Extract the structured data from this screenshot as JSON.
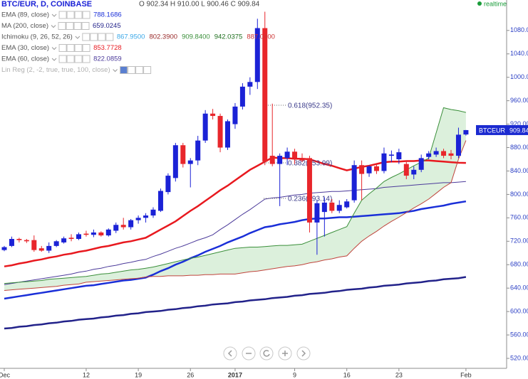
{
  "header": {
    "symbol": "BTC/EUR, D, COINBASE",
    "ohlc": "O 902.34  H 910.00  L 900.46  C 909.84",
    "realtime": "realtime",
    "indicators": [
      {
        "name": "EMA (89, close)",
        "name_color": "#555555",
        "values": [
          {
            "text": "788.1686",
            "color": "#1a2fd8"
          }
        ]
      },
      {
        "name": "MA (200, close)",
        "name_color": "#555555",
        "values": [
          {
            "text": "659.0245",
            "color": "#22228a"
          }
        ]
      },
      {
        "name": "Ichimoku (9, 26, 52, 26)",
        "name_color": "#555555",
        "values": [
          {
            "text": "867.9500",
            "color": "#3aa8e8"
          },
          {
            "text": "802.3900",
            "color": "#9a2c2c"
          },
          {
            "text": "909.8400",
            "color": "#3a8f3a"
          },
          {
            "text": "942.0375",
            "color": "#1d6e1d"
          },
          {
            "text": "887.0400",
            "color": "#cc3333"
          }
        ]
      },
      {
        "name": "EMA (30, close)",
        "name_color": "#555555",
        "values": [
          {
            "text": "853.7728",
            "color": "#e8191f"
          }
        ]
      },
      {
        "name": "EMA (60, close)",
        "name_color": "#555555",
        "values": [
          {
            "text": "822.0859",
            "color": "#4b3a9a"
          }
        ]
      },
      {
        "name": "Lin Reg (2, -2, true, true, 100, close)",
        "name_color": "#b0b0b0",
        "values": []
      }
    ]
  },
  "chart_data": {
    "type": "candlestick",
    "categories": [
      "Dec",
      null,
      null,
      null,
      null,
      null,
      null,
      null,
      null,
      null,
      null,
      "12",
      null,
      null,
      null,
      null,
      null,
      null,
      "19",
      null,
      null,
      null,
      null,
      null,
      null,
      "26",
      null,
      null,
      null,
      null,
      null,
      "2017",
      null,
      null,
      null,
      null,
      null,
      null,
      null,
      "9",
      null,
      null,
      null,
      null,
      null,
      null,
      "16",
      null,
      null,
      null,
      null,
      null,
      null,
      "23",
      null,
      null,
      null,
      null,
      null,
      null,
      null,
      null,
      "Feb"
    ],
    "open": [
      705,
      712,
      724,
      722,
      722,
      708,
      704,
      712,
      718,
      726,
      724,
      733,
      731,
      735,
      730,
      738,
      748,
      744,
      756,
      760,
      764,
      772,
      804,
      828,
      884,
      852,
      858,
      892,
      938,
      934,
      880,
      920,
      950,
      984,
      992,
      1084,
      866,
      852,
      862,
      873,
      862,
      862,
      752,
      770,
      786,
      772,
      778,
      790,
      850,
      836,
      848,
      840,
      866,
      860,
      852,
      834,
      842,
      864,
      868,
      874,
      870,
      866,
      902.34
    ],
    "high": [
      712,
      728,
      726,
      724,
      730,
      712,
      718,
      722,
      728,
      732,
      735,
      738,
      740,
      737,
      742,
      752,
      760,
      758,
      764,
      768,
      778,
      810,
      836,
      888,
      888,
      862,
      900,
      944,
      946,
      938,
      928,
      956,
      990,
      1000,
      1100,
      1112,
      955,
      870,
      880,
      878,
      870,
      866,
      790,
      795,
      792,
      790,
      792,
      858,
      858,
      850,
      852,
      880,
      875,
      878,
      858,
      848,
      868,
      874,
      880,
      878,
      876,
      914,
      910
    ],
    "low": [
      703,
      710,
      718,
      717,
      702,
      702,
      700,
      710,
      716,
      720,
      722,
      728,
      727,
      728,
      728,
      734,
      740,
      740,
      750,
      752,
      760,
      770,
      800,
      822,
      846,
      812,
      850,
      888,
      928,
      872,
      876,
      912,
      945,
      970,
      980,
      850,
      848,
      780,
      850,
      852,
      855,
      735,
      697,
      728,
      768,
      768,
      776,
      786,
      790,
      830,
      835,
      836,
      855,
      852,
      826,
      826,
      838,
      860,
      864,
      862,
      860,
      862,
      900.46
    ],
    "close": [
      710,
      724,
      722,
      720,
      705,
      704,
      712,
      720,
      725,
      724,
      732,
      731,
      735,
      730,
      740,
      748,
      744,
      756,
      760,
      764,
      774,
      806,
      832,
      884,
      852,
      858,
      892,
      938,
      934,
      880,
      925,
      950,
      984,
      992,
      1084,
      856,
      852,
      866,
      873,
      862,
      858,
      752,
      785,
      786,
      772,
      782,
      788,
      850,
      835,
      848,
      840,
      870,
      868,
      872,
      832,
      842,
      862,
      870,
      874,
      866,
      866,
      902,
      909.84
    ],
    "up_color": "#1b22d6",
    "down_color": "#e8262b",
    "series": [
      {
        "name": "EMA (89, close)",
        "color": "#1a2fd8",
        "width": 2.5,
        "values": [
          622,
          624,
          626,
          628,
          630,
          632,
          634,
          636,
          638,
          640,
          642,
          644,
          645,
          647,
          649,
          651,
          653,
          654,
          656,
          658,
          663,
          669,
          674,
          680,
          685,
          691,
          696,
          702,
          707,
          712,
          718,
          723,
          728,
          734,
          739,
          744,
          746,
          749,
          751,
          753,
          756,
          758,
          759,
          759,
          760,
          761,
          761,
          762,
          763,
          764,
          765,
          766,
          767,
          768,
          770,
          772,
          775,
          777,
          779,
          781,
          784,
          786,
          788.17
        ]
      },
      {
        "name": "MA (200, close)",
        "color": "#22228a",
        "width": 2.5,
        "values": [
          571,
          572,
          574,
          575,
          577,
          578,
          580,
          581,
          583,
          584,
          586,
          587,
          588,
          590,
          591,
          593,
          594,
          596,
          597,
          599,
          600,
          601,
          603,
          604,
          606,
          607,
          609,
          610,
          612,
          613,
          614,
          616,
          617,
          619,
          620,
          621,
          623,
          624,
          625,
          627,
          628,
          630,
          631,
          632,
          634,
          635,
          637,
          638,
          639,
          641,
          642,
          644,
          645,
          646,
          648,
          649,
          650,
          652,
          653,
          655,
          656,
          657,
          659
        ]
      },
      {
        "name": "EMA (30, close)",
        "color": "#e8191f",
        "width": 2.5,
        "values": [
          677,
          679,
          682,
          684,
          687,
          689,
          692,
          694,
          697,
          699,
          702,
          704,
          707,
          710,
          712,
          715,
          718,
          720,
          723,
          726,
          733,
          740,
          747,
          754,
          763,
          772,
          780,
          789,
          798,
          807,
          815,
          824,
          833,
          842,
          849,
          856,
          863,
          862,
          862,
          861,
          861,
          860,
          856,
          852,
          849,
          845,
          841,
          844,
          847,
          849,
          852,
          855,
          856,
          856,
          857,
          857,
          858,
          858,
          857,
          856,
          855,
          854,
          853.77
        ]
      },
      {
        "name": "EMA (60, close)",
        "color": "#4b3a9a",
        "width": 1,
        "values": [
          646,
          648,
          650,
          652,
          654,
          656,
          658,
          660,
          662,
          664,
          667,
          669,
          672,
          674,
          677,
          679,
          682,
          684,
          687,
          689,
          694,
          698,
          703,
          708,
          712,
          717,
          722,
          726,
          731,
          740,
          748,
          757,
          766,
          774,
          783,
          792,
          794,
          795,
          797,
          799,
          800,
          802,
          803,
          804,
          805,
          805,
          806,
          807,
          808,
          809,
          810,
          812,
          813,
          814,
          815,
          816,
          817,
          818,
          819,
          820,
          820,
          821,
          822.09
        ]
      },
      {
        "name": "Ichimoku span A",
        "color": "#3a8f3a",
        "width": 1,
        "values": [
          648,
          649,
          650,
          651,
          652,
          653,
          655,
          656,
          657,
          658,
          659,
          660,
          662,
          664,
          665,
          667,
          669,
          671,
          672,
          674,
          676,
          679,
          682,
          685,
          688,
          691,
          693,
          696,
          699,
          702,
          705,
          708,
          709,
          710,
          710,
          711,
          712,
          713,
          713,
          714,
          715,
          720,
          725,
          730,
          735,
          740,
          745,
          768,
          790,
          801,
          811,
          822,
          829,
          835,
          842,
          849,
          855,
          862,
          905,
          948,
          945,
          943,
          940
        ]
      },
      {
        "name": "Ichimoku span B",
        "color": "#c0443c",
        "width": 1,
        "values": [
          636,
          637,
          638,
          639,
          640,
          641,
          642,
          643,
          645,
          646,
          647,
          650,
          651,
          652,
          653,
          654,
          655,
          656,
          657,
          659,
          660,
          660,
          661,
          661,
          661,
          662,
          662,
          663,
          663,
          664,
          664,
          664,
          666,
          668,
          669,
          671,
          673,
          675,
          677,
          678,
          680,
          683,
          685,
          688,
          690,
          693,
          695,
          708,
          720,
          729,
          737,
          746,
          754,
          761,
          769,
          777,
          784,
          792,
          802,
          812,
          820,
          860,
          892
        ]
      }
    ],
    "cloud_color": "rgba(40,160,40,0.16)",
    "fib_levels": [
      {
        "label": "0.618(952.35)",
        "value": 952.35
      },
      {
        "label": "0.382(853.99)",
        "value": 853.99
      },
      {
        "label": "0.236(793.14)",
        "value": 793.14
      }
    ],
    "price_tag": {
      "symbol": "BTCEUR",
      "value": 909.84,
      "color": "#1b2ad0"
    },
    "ylim": [
      503,
      1132
    ],
    "yticks": [
      {
        "value": 520,
        "label": "520.00"
      },
      {
        "value": 560,
        "label": "560.00"
      },
      {
        "value": 600,
        "label": "600.00"
      },
      {
        "value": 640,
        "label": "640.00"
      },
      {
        "value": 680,
        "label": "680.00"
      },
      {
        "value": 720,
        "label": "720.00"
      },
      {
        "value": 760,
        "label": "760.00"
      },
      {
        "value": 800,
        "label": "800.00"
      },
      {
        "value": 840,
        "label": "840.00"
      },
      {
        "value": 880,
        "label": "880.00"
      },
      {
        "value": 920,
        "label": "920.00"
      },
      {
        "value": 960,
        "label": "960.00"
      },
      {
        "value": 1000,
        "label": "1000.00"
      },
      {
        "value": 1040,
        "label": "1040.00"
      },
      {
        "value": 1080,
        "label": "1080.00"
      }
    ],
    "grid": false
  }
}
